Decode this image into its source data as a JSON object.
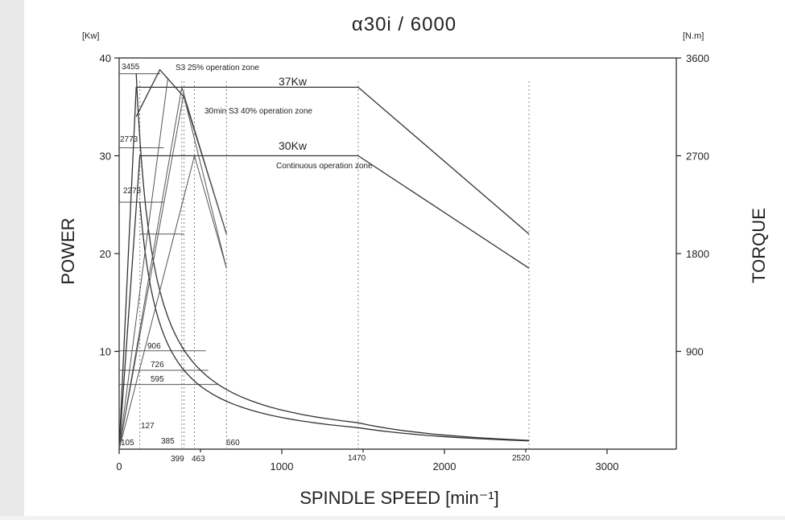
{
  "chart_data": {
    "type": "line",
    "title": "α30i / 6000",
    "xlabel": "SPINDLE SPEED [min⁻¹]",
    "ylabel": "POWER",
    "y2label": "TORQUE",
    "y_unit": "[Kw]",
    "y2_unit": "[N.m]",
    "xlim": [
      0,
      3500
    ],
    "ylim": [
      0,
      40
    ],
    "y2lim": [
      0,
      3600
    ],
    "x_ticks": [
      "0",
      "1000",
      "2000",
      "3000"
    ],
    "y_ticks": [
      "10",
      "20",
      "30",
      "40"
    ],
    "y2_ticks": [
      "900",
      "1800",
      "2700",
      "3600"
    ],
    "special_speeds": [
      "105",
      "127",
      "385",
      "399",
      "463",
      "660",
      "1470",
      "2520"
    ],
    "torque_labels": [
      "3455",
      "2773",
      "2273",
      "906",
      "726",
      "595"
    ],
    "annotations": {
      "s3_25": "S3 25% operation zone",
      "s3_40_37kw": "37Kw",
      "s3_40": "30min S3 40% operation zone",
      "cont_30kw": "30Kw",
      "cont": "Continuous operation zone"
    },
    "series": [
      {
        "name": "S3 40% operation zone power",
        "x": [
          0,
          105,
          127,
          1470,
          2520
        ],
        "y": [
          0,
          37,
          37,
          37,
          22
        ]
      },
      {
        "name": "Continuous operation zone power",
        "x": [
          0,
          127,
          1470,
          2520
        ],
        "y": [
          0,
          30,
          30,
          18.5
        ]
      },
      {
        "name": "S3 25% operation zone power",
        "x": [
          105,
          250,
          399,
          660
        ],
        "y": [
          34,
          38.8,
          36,
          22
        ]
      },
      {
        "name": "S3 40% torque",
        "x": [
          105,
          300,
          660,
          1470,
          2520
        ],
        "y": [
          38.4,
          13.5,
          6.1,
          2.7,
          0.9
        ]
      },
      {
        "name": "Continuous torque",
        "x": [
          127,
          300,
          660,
          1470,
          2520
        ],
        "y": [
          25.3,
          10.7,
          4.9,
          2.2,
          0.85
        ]
      }
    ]
  }
}
